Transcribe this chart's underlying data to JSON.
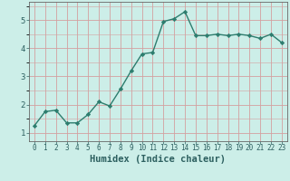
{
  "x": [
    0,
    1,
    2,
    3,
    4,
    5,
    6,
    7,
    8,
    9,
    10,
    11,
    12,
    13,
    14,
    15,
    16,
    17,
    18,
    19,
    20,
    21,
    22,
    23
  ],
  "y": [
    1.25,
    1.75,
    1.8,
    1.35,
    1.35,
    1.65,
    2.1,
    1.95,
    2.55,
    3.2,
    3.8,
    3.85,
    4.95,
    5.05,
    5.3,
    4.45,
    4.45,
    4.5,
    4.45,
    4.5,
    4.45,
    4.35,
    4.5,
    4.2
  ],
  "line_color": "#2d7d6e",
  "marker": "D",
  "markersize": 2.2,
  "linewidth": 1.0,
  "bg_color": "#cceee8",
  "grid_color": "#d4a0a0",
  "xlabel": "Humidex (Indice chaleur)",
  "xlabel_fontsize": 7.5,
  "ylabel_ticks": [
    1,
    2,
    3,
    4,
    5
  ],
  "xlim": [
    -0.5,
    23.5
  ],
  "ylim": [
    0.7,
    5.65
  ]
}
